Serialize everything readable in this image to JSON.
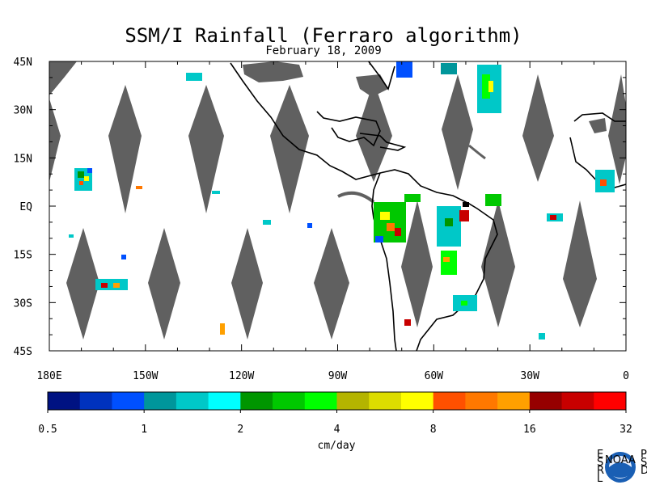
{
  "header": {
    "title": "SSM/I Rainfall (Ferraro algorithm)",
    "date": "February 18, 2009"
  },
  "map": {
    "lat_labels": [
      "45N",
      "30N",
      "15N",
      "EQ",
      "15S",
      "30S",
      "45S"
    ],
    "lat_values": [
      45,
      30,
      15,
      0,
      -15,
      -30,
      -45
    ],
    "lon_labels": [
      "180E",
      "150W",
      "120W",
      "90W",
      "60W",
      "30W",
      "0"
    ],
    "lon_values": [
      -180,
      -150,
      -120,
      -90,
      -60,
      -30,
      0
    ],
    "lon_range": [
      -180,
      0
    ],
    "lat_range": [
      -45,
      45
    ],
    "missing_color": "#606060",
    "coast_color": "#000000"
  },
  "colorbar": {
    "unit_label": "cm/day",
    "tick_labels": [
      "0.5",
      "1",
      "2",
      "4",
      "8",
      "16",
      "32"
    ],
    "colors": [
      "#001282",
      "#0032be",
      "#0050ff",
      "#00969b",
      "#00c8c8",
      "#00ffff",
      "#009600",
      "#00c800",
      "#00ff00",
      "#b4b400",
      "#dcdc00",
      "#ffff00",
      "#ff5000",
      "#ff7800",
      "#ffa000",
      "#960000",
      "#c80000",
      "#ff0000"
    ]
  },
  "logo": {
    "left_letters": "ESRL",
    "right_letters": "PSD",
    "badge_text": "NOAA"
  }
}
